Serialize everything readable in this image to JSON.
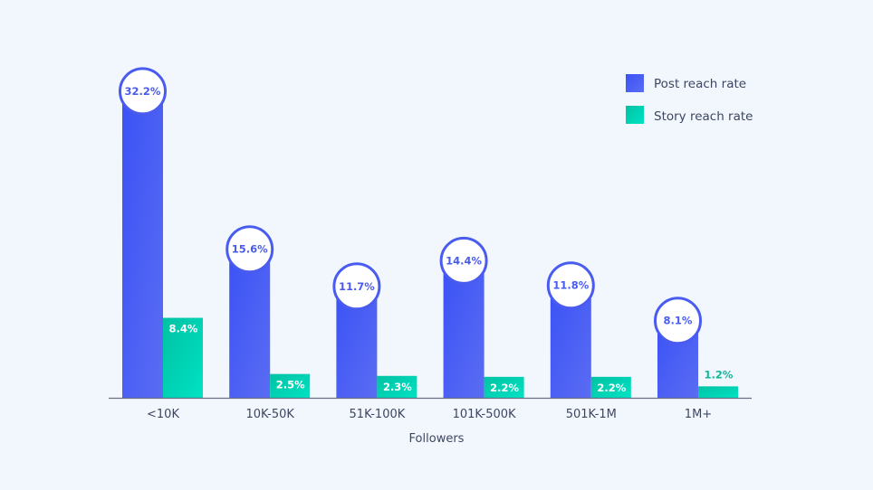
{
  "chart_data": {
    "type": "bar",
    "title": "",
    "xlabel": "Followers",
    "ylabel": "",
    "categories": [
      "<10K",
      "10K-50K",
      "51K-100K",
      "101K-500K",
      "501K-1M",
      "1M+"
    ],
    "series": [
      {
        "name": "Post reach rate",
        "values": [
          32.2,
          15.6,
          11.7,
          14.4,
          11.8,
          8.1
        ],
        "labels": [
          "32.2%",
          "15.6%",
          "11.7%",
          "14.4%",
          "11.8%",
          "8.1%"
        ],
        "color": "#3f55f5"
      },
      {
        "name": "Story reach rate",
        "values": [
          8.4,
          2.5,
          2.3,
          2.2,
          2.2,
          1.2
        ],
        "labels": [
          "8.4%",
          "2.5%",
          "2.3%",
          "2.2%",
          "2.2%",
          "1.2%"
        ],
        "color": "#00d4b4"
      }
    ],
    "ylim": [
      0,
      35
    ],
    "grid": false,
    "legend": "top-right",
    "unit": "%"
  }
}
